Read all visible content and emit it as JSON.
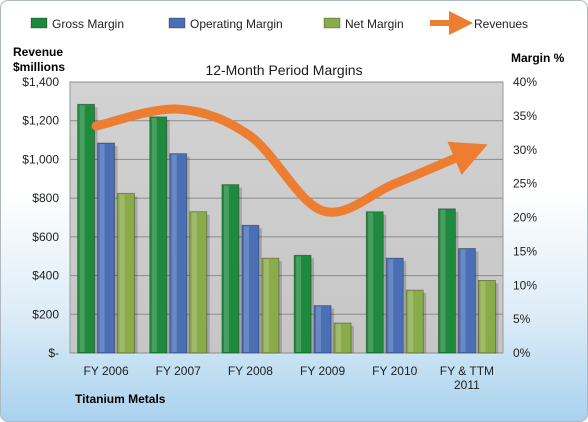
{
  "chart_data": {
    "type": "bar",
    "title": "12-Month Period Margins",
    "company": "Titanium Metals",
    "categories": [
      "FY 2006",
      "FY 2007",
      "FY 2008",
      "FY 2009",
      "FY 2010",
      "FY & TTM 2011"
    ],
    "y_left": {
      "label_line1": "Revenue",
      "label_line2": "$millions",
      "range": [
        0,
        1400
      ],
      "ticks": [
        0,
        200,
        400,
        600,
        800,
        1000,
        1200,
        1400
      ],
      "tick_labels": [
        "$-",
        "$200",
        "$400",
        "$600",
        "$800",
        "$1,000",
        "$1,200",
        "$1,400"
      ]
    },
    "y_right": {
      "label": "Margin %",
      "range": [
        0,
        40
      ],
      "ticks": [
        0,
        5,
        10,
        15,
        20,
        25,
        30,
        35,
        40
      ],
      "tick_labels": [
        "0%",
        "5%",
        "10%",
        "15%",
        "20%",
        "25%",
        "30%",
        "35%",
        "40%"
      ]
    },
    "series": [
      {
        "name": "Gross Margin",
        "axis": "left",
        "kind": "bar",
        "color": "#1f8a3e",
        "values": [
          1285,
          1220,
          870,
          505,
          730,
          745
        ]
      },
      {
        "name": "Operating Margin",
        "axis": "left",
        "kind": "bar",
        "color": "#4a6fb5",
        "values": [
          1085,
          1030,
          660,
          245,
          490,
          540
        ]
      },
      {
        "name": "Net Margin",
        "axis": "left",
        "kind": "bar",
        "color": "#8aab4a",
        "values": [
          825,
          730,
          490,
          155,
          325,
          375
        ]
      },
      {
        "name": "Revenues",
        "axis": "right",
        "kind": "line",
        "color": "#ed7d31",
        "values": [
          33.5,
          36,
          32,
          21,
          25,
          29.5
        ]
      }
    ],
    "grid": true,
    "legend_position": "top"
  }
}
